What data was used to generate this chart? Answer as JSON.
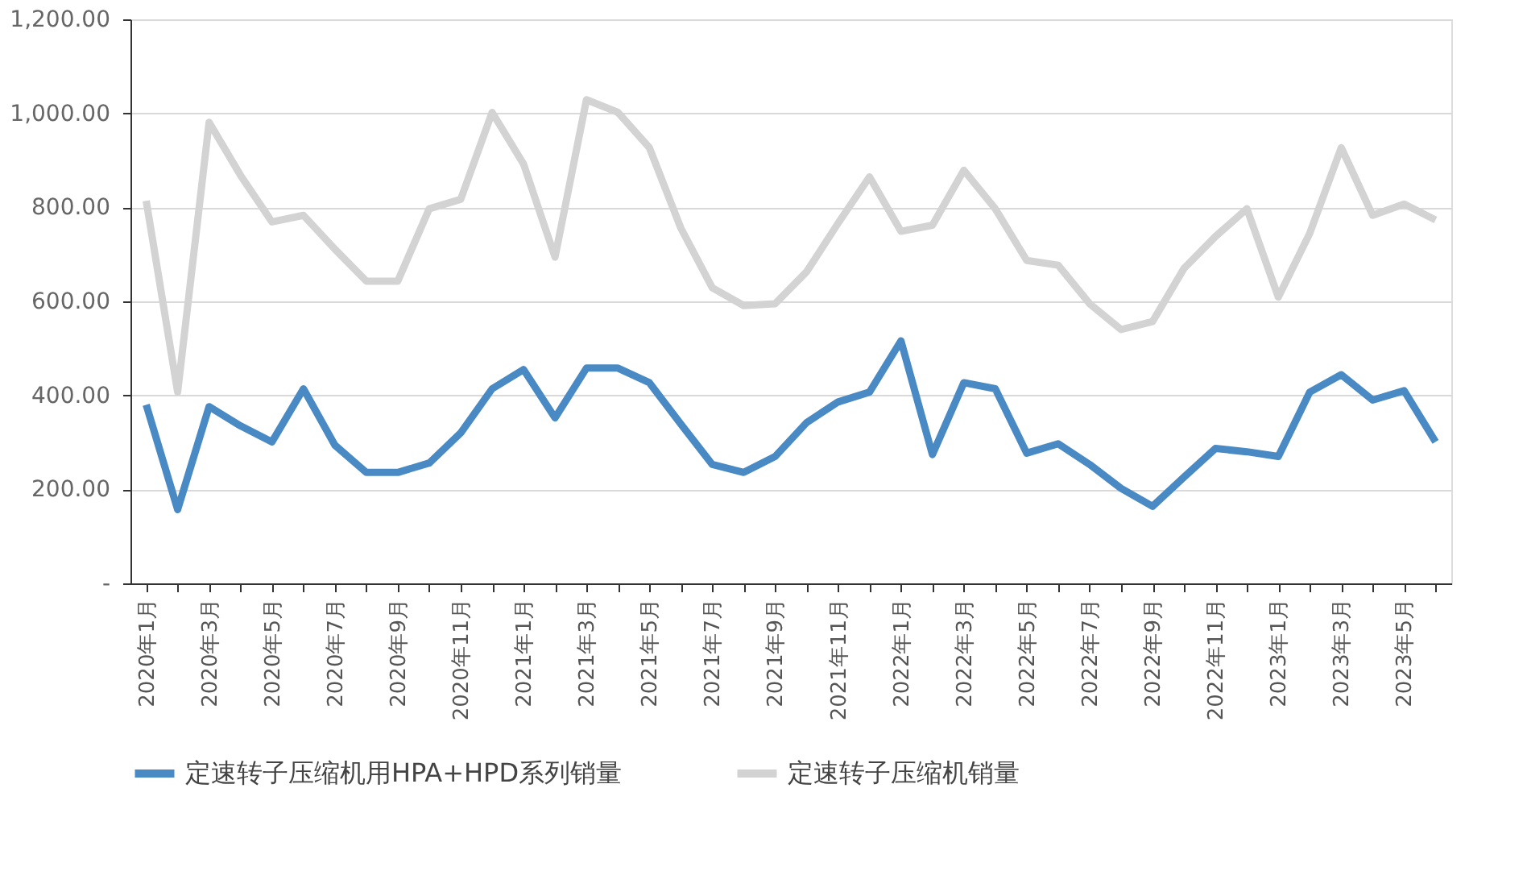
{
  "chart_data": {
    "type": "line",
    "categories": [
      "2020年1月",
      null,
      "2020年3月",
      null,
      "2020年5月",
      null,
      "2020年7月",
      null,
      "2020年9月",
      null,
      "2020年11月",
      null,
      "2021年1月",
      null,
      "2021年3月",
      null,
      "2021年5月",
      null,
      "2021年7月",
      null,
      "2021年9月",
      null,
      "2021年11月",
      null,
      "2022年1月",
      null,
      "2022年3月",
      null,
      "2022年5月",
      null,
      "2022年7月",
      null,
      "2022年9月",
      null,
      "2022年11月",
      null,
      "2023年1月",
      null,
      "2023年3月",
      null,
      "2023年5月",
      null
    ],
    "series": [
      {
        "name": "定速转子压缩机用HPA+HPD系列销量",
        "color": "#4a8ac4",
        "values": [
          380,
          157,
          376,
          335,
          301,
          414,
          294,
          236,
          236,
          256,
          320,
          414,
          455,
          352,
          458,
          458,
          427,
          339,
          253,
          236,
          270,
          342,
          386,
          407,
          516,
          274,
          427,
          414,
          277,
          297,
          253,
          202,
          164,
          226,
          287,
          280,
          270,
          407,
          444,
          390,
          410,
          301
        ]
      },
      {
        "name": "定速转子压缩机销量",
        "color": "#d3d3d3",
        "values": [
          814,
          407,
          981,
          868,
          769,
          783,
          711,
          643,
          643,
          797,
          817,
          1002,
          892,
          694,
          1029,
          1002,
          927,
          756,
          629,
          591,
          595,
          663,
          766,
          865,
          749,
          762,
          879,
          797,
          687,
          677,
          595,
          540,
          557,
          670,
          738,
          797,
          609,
          745,
          927,
          783,
          807,
          773
        ]
      }
    ],
    "ylim": [
      0,
      1200
    ],
    "yticks": [
      {
        "value": 0,
        "label": "-"
      },
      {
        "value": 200,
        "label": "200.00"
      },
      {
        "value": 400,
        "label": "400.00"
      },
      {
        "value": 600,
        "label": "600.00"
      },
      {
        "value": 800,
        "label": "800.00"
      },
      {
        "value": 1000,
        "label": "1,000.00"
      },
      {
        "value": 1200,
        "label": "1,200.00"
      }
    ],
    "grid": "y",
    "legend": "bottom",
    "marker": "none",
    "line_style": "solid"
  }
}
